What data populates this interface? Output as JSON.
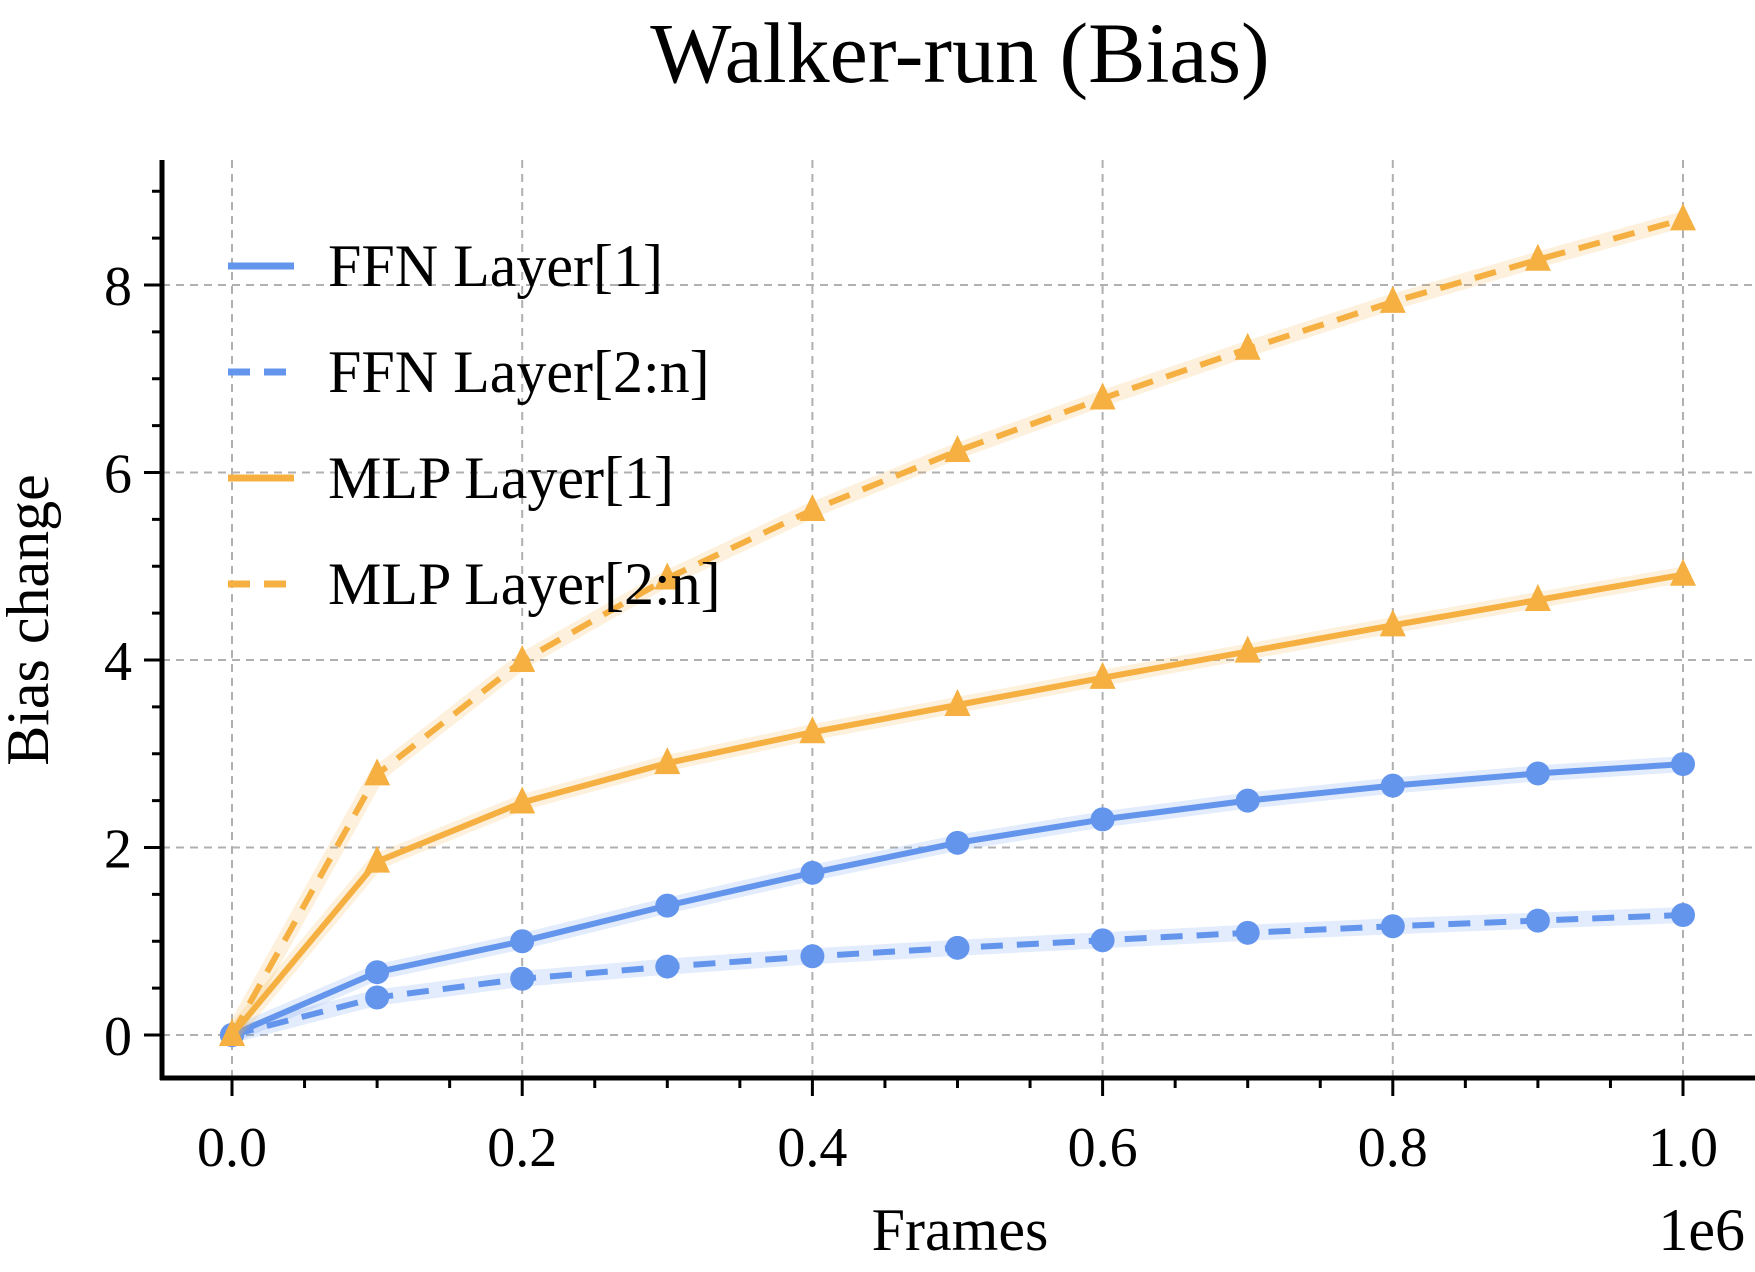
{
  "chart_data": {
    "type": "line",
    "title": "Walker-run (Bias)",
    "xlabel": "Frames",
    "ylabel": "Bias change",
    "x_offset_label": "1e6",
    "xlim": [
      -0.05,
      1.05
    ],
    "ylim": [
      -0.45,
      9.3
    ],
    "x_ticks": [
      0.0,
      0.2,
      0.4,
      0.6,
      0.8,
      1.0
    ],
    "x_tick_labels": [
      "0.0",
      "0.2",
      "0.4",
      "0.6",
      "0.8",
      "1.0"
    ],
    "y_ticks": [
      0,
      2,
      4,
      6,
      8
    ],
    "y_tick_labels": [
      "0",
      "2",
      "4",
      "6",
      "8"
    ],
    "grid": true,
    "legend_position": "upper-left",
    "x": [
      0.0,
      0.1,
      0.2,
      0.3,
      0.4,
      0.5,
      0.6,
      0.7,
      0.8,
      0.9,
      1.0
    ],
    "series": [
      {
        "name": "FFN Layer[1]",
        "color": "#6495ED",
        "linestyle": "solid",
        "marker": "circle",
        "values": [
          0.0,
          0.67,
          1.0,
          1.38,
          1.73,
          2.05,
          2.3,
          2.5,
          2.66,
          2.79,
          2.89
        ]
      },
      {
        "name": "FFN Layer[2:n]",
        "color": "#6495ED",
        "linestyle": "dashed",
        "marker": "circle",
        "values": [
          0.0,
          0.4,
          0.6,
          0.73,
          0.84,
          0.93,
          1.01,
          1.09,
          1.16,
          1.22,
          1.28
        ]
      },
      {
        "name": "MLP Layer[1]",
        "color": "#F5B041",
        "linestyle": "solid",
        "marker": "triangle",
        "values": [
          0.0,
          1.85,
          2.48,
          2.9,
          3.23,
          3.52,
          3.81,
          4.09,
          4.37,
          4.64,
          4.91
        ]
      },
      {
        "name": "MLP Layer[2:n]",
        "color": "#F5B041",
        "linestyle": "dashed",
        "marker": "triangle",
        "values": [
          0.0,
          2.78,
          3.99,
          4.87,
          5.6,
          6.23,
          6.79,
          7.32,
          7.82,
          8.27,
          8.7
        ]
      }
    ]
  }
}
